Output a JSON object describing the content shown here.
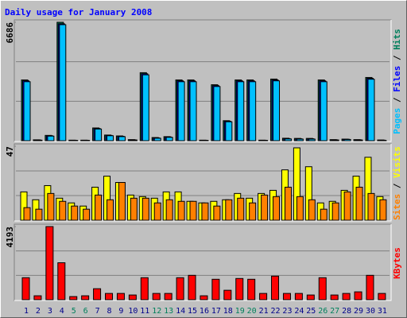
{
  "chart_data": [
    {
      "type": "bar",
      "title": "Daily usage for January 2008",
      "categories": [
        "1",
        "2",
        "3",
        "4",
        "5",
        "6",
        "7",
        "8",
        "9",
        "10",
        "11",
        "12",
        "13",
        "14",
        "15",
        "16",
        "17",
        "18",
        "19",
        "20",
        "21",
        "22",
        "23",
        "24",
        "25",
        "26",
        "27",
        "28",
        "29",
        "30",
        "31"
      ],
      "category_colors": [
        "#00008b",
        "#00008b",
        "#00008b",
        "#00008b",
        "#00805c",
        "#00805c",
        "#00008b",
        "#00008b",
        "#00008b",
        "#00008b",
        "#00008b",
        "#00805c",
        "#00805c",
        "#00008b",
        "#00008b",
        "#00008b",
        "#00008b",
        "#00008b",
        "#00805c",
        "#00805c",
        "#00008b",
        "#00008b",
        "#00008b",
        "#00008b",
        "#00008b",
        "#00805c",
        "#00805c",
        "#00008b",
        "#00008b",
        "#00008b",
        "#00008b"
      ],
      "legend_separator": " / ",
      "ylim": [
        0,
        6686
      ],
      "yticks": [
        6686
      ],
      "grid": true,
      "series": [
        {
          "name": "Hits",
          "color": "#00805c",
          "values": [
            3430,
            50,
            300,
            6686,
            30,
            30,
            720,
            320,
            270,
            60,
            3840,
            180,
            230,
            3430,
            3430,
            30,
            3160,
            1130,
            3430,
            3430,
            30,
            3480,
            140,
            130,
            130,
            3430,
            60,
            90,
            60,
            3570,
            40
          ]
        },
        {
          "name": "Files",
          "color": "#0000ff",
          "values": [
            3380,
            40,
            280,
            6600,
            25,
            25,
            690,
            300,
            250,
            50,
            3780,
            160,
            210,
            3380,
            3380,
            25,
            3110,
            1100,
            3380,
            3380,
            25,
            3430,
            120,
            110,
            110,
            3380,
            50,
            80,
            50,
            3520,
            30
          ]
        },
        {
          "name": "Pages",
          "color": "#00c0ff",
          "values": [
            3330,
            30,
            260,
            6550,
            20,
            20,
            660,
            280,
            230,
            40,
            3720,
            140,
            190,
            3330,
            3330,
            20,
            3060,
            1070,
            3330,
            3330,
            20,
            3380,
            100,
            90,
            90,
            3330,
            40,
            70,
            40,
            3470,
            20
          ]
        }
      ]
    },
    {
      "type": "bar",
      "ylim": [
        0,
        47
      ],
      "yticks": [
        47
      ],
      "grid": true,
      "series": [
        {
          "name": "Visits",
          "color": "#ffff00",
          "values": [
            18,
            13,
            22,
            14,
            11,
            9,
            21,
            28,
            24,
            16,
            15,
            14,
            18,
            18,
            12,
            11,
            12,
            13,
            17,
            14,
            17,
            19,
            32,
            46,
            34,
            11,
            12,
            19,
            28,
            40,
            15
          ]
        },
        {
          "name": "Sites",
          "color": "#ff8000",
          "values": [
            8,
            7,
            17,
            12,
            9,
            7,
            16,
            13,
            24,
            14,
            14,
            11,
            13,
            12,
            12,
            11,
            9,
            13,
            14,
            11,
            16,
            15,
            21,
            15,
            13,
            7,
            11,
            18,
            21,
            17,
            13
          ]
        }
      ]
    },
    {
      "type": "bar",
      "ylim": [
        0,
        4193
      ],
      "yticks": [
        4193
      ],
      "grid": true,
      "series": [
        {
          "name": "KBytes",
          "color": "#ff0000",
          "values": [
            1262,
            225,
            4193,
            2119,
            180,
            225,
            631,
            360,
            360,
            270,
            1262,
            360,
            360,
            1262,
            1398,
            225,
            1172,
            541,
            1217,
            1172,
            360,
            1353,
            360,
            360,
            270,
            1262,
            270,
            360,
            451,
            1398,
            360
          ]
        }
      ]
    }
  ]
}
